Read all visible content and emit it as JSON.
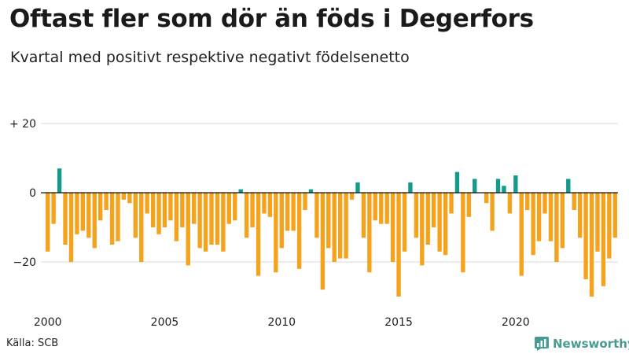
{
  "title": "Oftast fler som dör än föds i Degerfors",
  "subtitle": "Kvartal med positivt respektive negativt födelsenetto",
  "source": "Källa: SCB",
  "brand": "Newsworthy",
  "colors": {
    "positive": "#139a8a",
    "negative": "#f5a21d",
    "grid": "#d9d9d9",
    "zero": "#111111",
    "brand": "#4a9a90"
  },
  "chart_data": {
    "type": "bar",
    "title": "Oftast fler som dör än föds i Degerfors",
    "xlabel": "",
    "ylabel": "",
    "ylim": [
      -32,
      22
    ],
    "yticks": [
      {
        "value": 20,
        "label": "+ 20"
      },
      {
        "value": 0,
        "label": "0"
      },
      {
        "value": -20,
        "label": "−20"
      }
    ],
    "xticks": [
      {
        "label": "2000",
        "index": 0
      },
      {
        "label": "2005",
        "index": 20
      },
      {
        "label": "2010",
        "index": 40
      },
      {
        "label": "2015",
        "index": 60
      },
      {
        "label": "2020",
        "index": 80
      }
    ],
    "grid": true,
    "start": "2000 Q1",
    "values": [
      -17,
      -9,
      7,
      -15,
      -20,
      -12,
      -11,
      -13,
      -16,
      -8,
      -5,
      -15,
      -14,
      -2,
      -3,
      -13,
      -20,
      -6,
      -10,
      -12,
      -10,
      -8,
      -14,
      -10,
      -21,
      -9,
      -16,
      -17,
      -15,
      -15,
      -17,
      -9,
      -8,
      1,
      -13,
      -10,
      -24,
      -6,
      -7,
      -23,
      -16,
      -11,
      -11,
      -22,
      -5,
      1,
      -13,
      -28,
      -16,
      -20,
      -19,
      -19,
      -2,
      3,
      -13,
      -23,
      -8,
      -9,
      -9,
      -20,
      -30,
      -17,
      3,
      -13,
      -21,
      -15,
      -10,
      -17,
      -18,
      -6,
      6,
      -23,
      -7,
      4,
      0,
      -3,
      -11,
      4,
      2,
      -6,
      5,
      -24,
      -5,
      -18,
      -14,
      -6,
      -14,
      -20,
      -16,
      4,
      -5,
      -13,
      -25,
      -30,
      -17,
      -27,
      -19,
      -13
    ]
  }
}
